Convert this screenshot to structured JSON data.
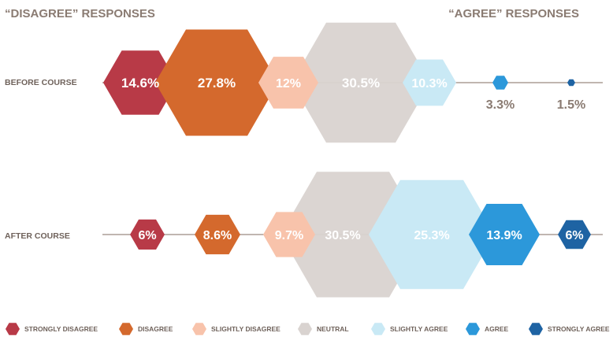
{
  "chart_data": {
    "type": "hexagon-bubble",
    "left_header": "“DISAGREE” RESPONSES",
    "right_header": "“AGREE” RESPONSES",
    "categories": [
      "STRONGLY DISAGREE",
      "DISAGREE",
      "SLIGHTLY DISAGREE",
      "NEUTRAL",
      "SLIGHTLY AGREE",
      "AGREE",
      "STRONGLY AGREE"
    ],
    "colors": [
      "#b83a47",
      "#d4692d",
      "#f8c3ab",
      "#d9d3d0",
      "#c9e9f5",
      "#2c98da",
      "#1e63a3"
    ],
    "series": [
      {
        "name": "BEFORE COURSE",
        "values": [
          "14.6%",
          "27.8%",
          "12%",
          "30.5%",
          "10.3%",
          "3.3%",
          "1.5%"
        ]
      },
      {
        "name": "AFTER COURSE",
        "values": [
          "6%",
          "8.6%",
          "9.7%",
          "30.5%",
          "25.3%",
          "13.9%",
          "6%"
        ]
      }
    ],
    "legend_position": "bottom"
  }
}
